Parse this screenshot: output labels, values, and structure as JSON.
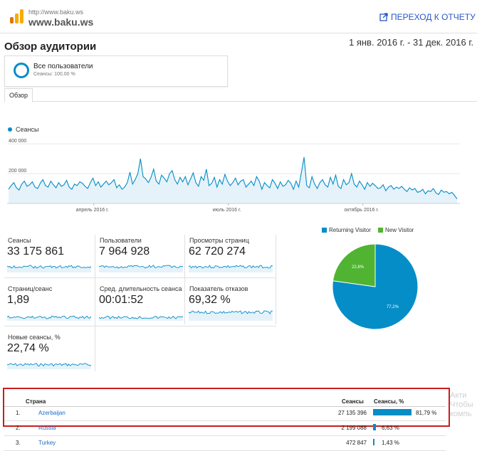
{
  "header": {
    "site_url": "http://www.baku.ws",
    "site_name": "www.baku.ws",
    "report_link": "ПЕРЕХОД К ОТЧЕТУ"
  },
  "page": {
    "title": "Обзор аудитории",
    "date_range": "1 янв. 2016 г. - 31 дек. 2016 г."
  },
  "segment": {
    "name": "Все пользователи",
    "sub": "Сеансы: 100,00 %"
  },
  "tabs": [
    {
      "label": "Обзор"
    }
  ],
  "chart_data": [
    {
      "type": "line",
      "series": [
        {
          "name": "Сеансы",
          "values": [
            95000,
            120000,
            140000,
            105000,
            90000,
            130000,
            150000,
            115000,
            125000,
            145000,
            110000,
            100000,
            135000,
            160000,
            120000,
            110000,
            150000,
            125000,
            105000,
            140000,
            115000,
            125000,
            155000,
            110000,
            95000,
            130000,
            120000,
            145000,
            135000,
            115000,
            100000,
            140000,
            170000,
            120000,
            145000,
            110000,
            130000,
            150000,
            125000,
            140000,
            160000,
            105000,
            125000,
            95000,
            110000,
            140000,
            210000,
            130000,
            160000,
            200000,
            300000,
            180000,
            165000,
            140000,
            175000,
            230000,
            150000,
            130000,
            190000,
            170000,
            145000,
            200000,
            220000,
            160000,
            130000,
            175000,
            145000,
            180000,
            125000,
            165000,
            205000,
            140000,
            115000,
            180000,
            155000,
            230000,
            120000,
            135000,
            175000,
            110000,
            160000,
            130000,
            195000,
            150000,
            120000,
            140000,
            170000,
            125000,
            150000,
            160000,
            110000,
            130000,
            150000,
            120000,
            180000,
            150000,
            95000,
            140000,
            120000,
            105000,
            160000,
            135000,
            100000,
            145000,
            115000,
            125000,
            155000,
            135000,
            95000,
            150000,
            110000,
            210000,
            310000,
            120000,
            105000,
            180000,
            130000,
            100000,
            140000,
            160000,
            125000,
            110000,
            175000,
            130000,
            190000,
            115000,
            100000,
            160000,
            125000,
            140000,
            200000,
            130000,
            110000,
            150000,
            125000,
            95000,
            140000,
            115000,
            135000,
            120000,
            100000,
            105000,
            125000,
            85000,
            110000,
            120000,
            95000,
            110000,
            100000,
            115000,
            95000,
            80000,
            105000,
            90000,
            100000,
            75000,
            80000,
            95000,
            65000,
            85000,
            80000,
            100000,
            70000,
            60000,
            90000,
            75000,
            80000,
            65000,
            75000,
            55000,
            30000
          ]
        }
      ],
      "y_ticks": [
        "400 000",
        "200 000"
      ],
      "y_values": [
        400000,
        200000
      ],
      "ylim": [
        0,
        420000
      ],
      "x_ticks": [
        "апрель 2016 г.",
        "июль 2016 г.",
        "октябрь 2016 г."
      ],
      "legend": "top-left"
    },
    {
      "type": "pie",
      "categories": [
        "Returning Visitor",
        "New Visitor"
      ],
      "values": [
        77.2,
        22.8
      ],
      "labels": [
        "77,2%",
        "22,8%"
      ],
      "colors": [
        "#058dc7",
        "#50b432"
      ],
      "legend": "top"
    }
  ],
  "metrics": [
    {
      "label": "Сеансы",
      "value": "33 175 861"
    },
    {
      "label": "Пользователи",
      "value": "7 964 928"
    },
    {
      "label": "Просмотры страниц",
      "value": "62 720 274"
    },
    {
      "label": "Страниц/сеанс",
      "value": "1,89"
    },
    {
      "label": "Сред. длительность сеанса",
      "value": "00:01:52"
    },
    {
      "label": "Показатель отказов",
      "value": "69,32 %"
    },
    {
      "label": "Новые сеансы, %",
      "value": "22,74 %"
    }
  ],
  "table": {
    "headers": {
      "country": "Страна",
      "sessions": "Сеансы",
      "sessions_pct": "Сеансы, %"
    },
    "rows": [
      {
        "n": "1.",
        "country": "Azerbaijan",
        "sessions": "27 135 396",
        "pct": "81,79 %",
        "share": 0.8179
      },
      {
        "n": "2.",
        "country": "Russia",
        "sessions": "2 199 088",
        "pct": "6,63 %",
        "share": 0.0663
      },
      {
        "n": "3.",
        "country": "Turkey",
        "sessions": "472 847",
        "pct": "1,43 %",
        "share": 0.0143
      }
    ]
  },
  "watermark": [
    "Акти",
    "Чтобы",
    "компь"
  ],
  "colors": {
    "accent": "#058dc7",
    "new_visitor": "#50b432",
    "highlight": "#c81e1e",
    "link": "#1a6ac7"
  }
}
